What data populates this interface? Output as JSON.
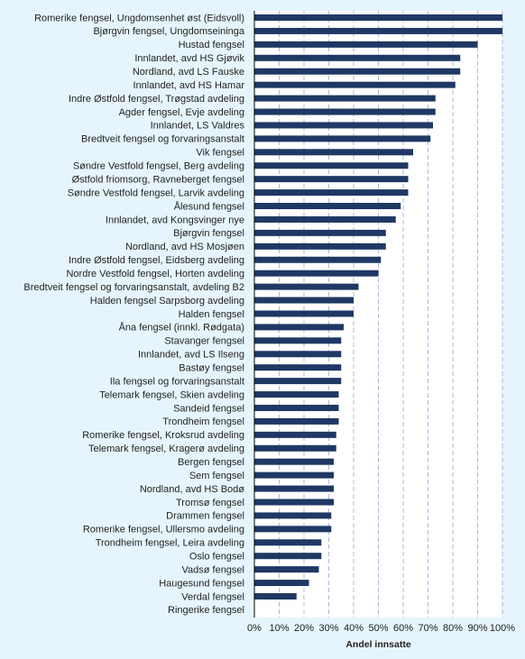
{
  "chart_data": {
    "type": "bar",
    "orientation": "horizontal",
    "xlabel": "Andel innsatte",
    "ylabel": "",
    "title": "",
    "xlim": [
      0,
      1
    ],
    "x_ticks": [
      "0%",
      "10%",
      "20%",
      "30%",
      "40%",
      "50%",
      "60%",
      "70%",
      "80%",
      "90%",
      "100%"
    ],
    "grid": "vertical dashed",
    "bar_color": "#1f3864",
    "categories": [
      "Romerike fengsel, Ungdomsenhet øst (Eidsvoll)",
      "Bjørgvin fengsel, Ungdomseininga",
      "Hustad fengsel",
      "Innlandet, avd HS Gjøvik",
      "Nordland, avd LS Fauske",
      "Innlandet, avd HS Hamar",
      "Indre Østfold fengsel, Trøgstad avdeling",
      "Agder fengsel, Evje avdeling",
      "Innlandet, LS Valdres",
      "Bredtveit fengsel og forvaringsanstalt",
      "Vik fengsel",
      "Søndre Vestfold fengsel, Berg avdeling",
      "Østfold friomsorg, Ravneberget fengsel",
      "Søndre Vestfold fengsel, Larvik avdeling",
      "Ålesund fengsel",
      "Innlandet, avd Kongsvinger nye",
      "Bjørgvin fengsel",
      "Nordland, avd HS Mosjøen",
      "Indre Østfold fengsel, Eidsberg avdeling",
      "Nordre Vestfold fengsel, Horten avdeling",
      "Bredtveit fengsel og forvaringsanstalt, avdeling B2",
      "Halden fengsel Sarpsborg avdeling",
      "Halden fengsel",
      "Åna fengsel (innkl. Rødgata)",
      "Stavanger fengsel",
      "Innlandet, avd LS Ilseng",
      "Bastøy fengsel",
      "Ila fengsel og forvaringsanstalt",
      "Telemark fengsel, Skien avdeling",
      "Sandeid fengsel",
      "Trondheim fengsel",
      "Romerike fengsel, Kroksrud avdeling",
      "Telemark fengsel, Kragerø avdeling",
      "Bergen fengsel",
      "Sem fengsel",
      "Nordland, avd HS Bodø",
      "Tromsø fengsel",
      "Drammen fengsel",
      "Romerike fengsel, Ullersmo avdeling",
      "Trondheim fengsel, Leira avdeling",
      "Oslo fengsel",
      "Vadsø fengsel",
      "Haugesund fengsel",
      "Verdal fengsel",
      "Ringerike fengsel"
    ],
    "values": [
      1.0,
      1.0,
      0.9,
      0.83,
      0.83,
      0.81,
      0.73,
      0.73,
      0.72,
      0.71,
      0.64,
      0.62,
      0.62,
      0.62,
      0.59,
      0.57,
      0.53,
      0.53,
      0.51,
      0.5,
      0.42,
      0.4,
      0.4,
      0.36,
      0.35,
      0.35,
      0.35,
      0.35,
      0.34,
      0.34,
      0.34,
      0.33,
      0.33,
      0.32,
      0.32,
      0.32,
      0.32,
      0.31,
      0.31,
      0.27,
      0.27,
      0.26,
      0.22,
      0.17,
      0.0
    ]
  }
}
